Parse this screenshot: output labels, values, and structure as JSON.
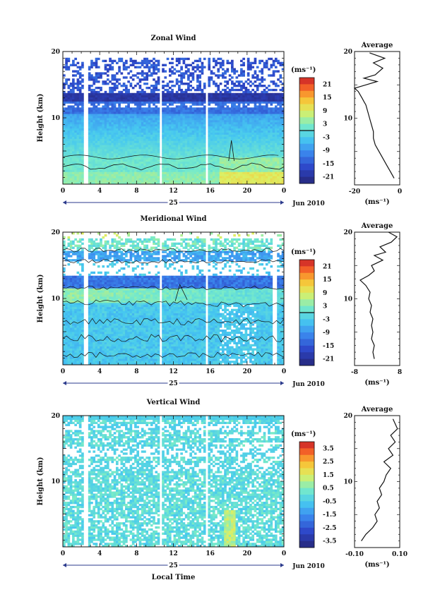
{
  "chart_data": [
    {
      "type": "heatmap",
      "title": "Zonal Wind",
      "ylabel": "Height (km)",
      "xlabel": "",
      "date_label": "Jun 2010",
      "day_label": "25",
      "xlim": [
        0,
        24
      ],
      "ylim": [
        0,
        20
      ],
      "x_ticks": [
        "0",
        "4",
        "8",
        "12",
        "16",
        "20",
        "0"
      ],
      "y_ticks": [
        "10",
        "20"
      ],
      "colorbar": {
        "unit": "(ms⁻¹)",
        "min": -24,
        "max": 24,
        "ticks": [
          "21",
          "15",
          "9",
          "3",
          "-3",
          "-9",
          "-15",
          "-21"
        ]
      },
      "data_gaps_hours": [
        2.5,
        10.6,
        15.6
      ],
      "average_profile": {
        "title": "Average",
        "xlabel": "(ms⁻¹)",
        "xlim": [
          -20,
          4
        ],
        "x_ticks": [
          "-20",
          "0"
        ],
        "y_ticks": [
          "10",
          "20"
        ],
        "x": [
          1,
          -1,
          -3,
          -5,
          -7,
          -9,
          -10,
          -10,
          -11,
          -12,
          -13,
          -14,
          -15,
          -16,
          -17,
          -18,
          -20,
          -14,
          -8,
          -15,
          -9,
          -5,
          -10,
          -4,
          -12
        ],
        "y": [
          1,
          2,
          3,
          4,
          5,
          6,
          7,
          8,
          9,
          10,
          11,
          12,
          12.5,
          13,
          13.5,
          14,
          14.5,
          15,
          15.5,
          16,
          16.5,
          17.5,
          18.3,
          19,
          19.8
        ]
      }
    },
    {
      "type": "heatmap",
      "title": "Meridional Wind",
      "ylabel": "Height (km)",
      "xlabel": "",
      "date_label": "Jun 2010",
      "day_label": "25",
      "xlim": [
        0,
        24
      ],
      "ylim": [
        0,
        20
      ],
      "x_ticks": [
        "0",
        "4",
        "8",
        "12",
        "16",
        "20",
        "0"
      ],
      "y_ticks": [
        "10",
        "20"
      ],
      "colorbar": {
        "unit": "(ms⁻¹)",
        "min": -24,
        "max": 24,
        "ticks": [
          "21",
          "15",
          "9",
          "3",
          "-3",
          "-9",
          "-15",
          "-21"
        ]
      },
      "data_gaps_hours": [
        2.5,
        10.6,
        15.6,
        23.0
      ],
      "average_profile": {
        "title": "Average",
        "xlabel": "(ms⁻¹)",
        "xlim": [
          -8,
          8
        ],
        "x_ticks": [
          "-8",
          "8"
        ],
        "y_ticks": [
          "10",
          "20"
        ],
        "x": [
          -1,
          -1.5,
          -1,
          -2,
          -1.5,
          -2,
          -1.5,
          -2.5,
          -2,
          -3,
          -2.5,
          -4,
          -6,
          -3,
          -1,
          -2,
          2,
          -1,
          3,
          1,
          5,
          7,
          4
        ],
        "y": [
          1,
          2,
          3,
          4,
          5,
          6,
          7,
          8,
          9,
          10,
          11,
          12,
          12.8,
          13.5,
          14.2,
          15,
          15.8,
          16.5,
          17,
          17.8,
          18.5,
          19.3,
          20
        ]
      }
    },
    {
      "type": "heatmap",
      "title": "Vertical Wind",
      "ylabel": "Height (km)",
      "xlabel": "Local Time",
      "date_label": "Jun 2010",
      "day_label": "25",
      "xlim": [
        0,
        24
      ],
      "ylim": [
        0,
        20
      ],
      "x_ticks": [
        "0",
        "4",
        "8",
        "12",
        "16",
        "20",
        "0"
      ],
      "y_ticks": [
        "10",
        "20"
      ],
      "colorbar": {
        "unit": "(ms⁻¹)",
        "min": -4,
        "max": 4,
        "ticks": [
          "3.5",
          "2.5",
          "1.5",
          "0.5",
          "-0.5",
          "-1.5",
          "-2.5",
          "-3.5"
        ]
      },
      "data_gaps_hours": [
        2.5,
        10.6,
        15.6
      ],
      "average_profile": {
        "title": "Average",
        "xlabel": "(ms⁻¹)",
        "xlim": [
          -0.1,
          0.1
        ],
        "x_ticks": [
          "-0.10",
          "0.10"
        ],
        "y_ticks": [
          "10",
          "20"
        ],
        "x": [
          -0.07,
          -0.05,
          -0.02,
          0.0,
          -0.01,
          0.01,
          0.0,
          0.02,
          0.01,
          0.03,
          0.04,
          0.06,
          0.03,
          0.07,
          0.05,
          0.08,
          0.06,
          0.09,
          0.07
        ],
        "y": [
          1,
          2,
          3,
          4,
          5,
          6,
          7,
          8,
          9,
          10,
          11,
          12,
          13,
          14,
          15,
          16,
          17,
          18,
          19.5
        ]
      }
    }
  ]
}
